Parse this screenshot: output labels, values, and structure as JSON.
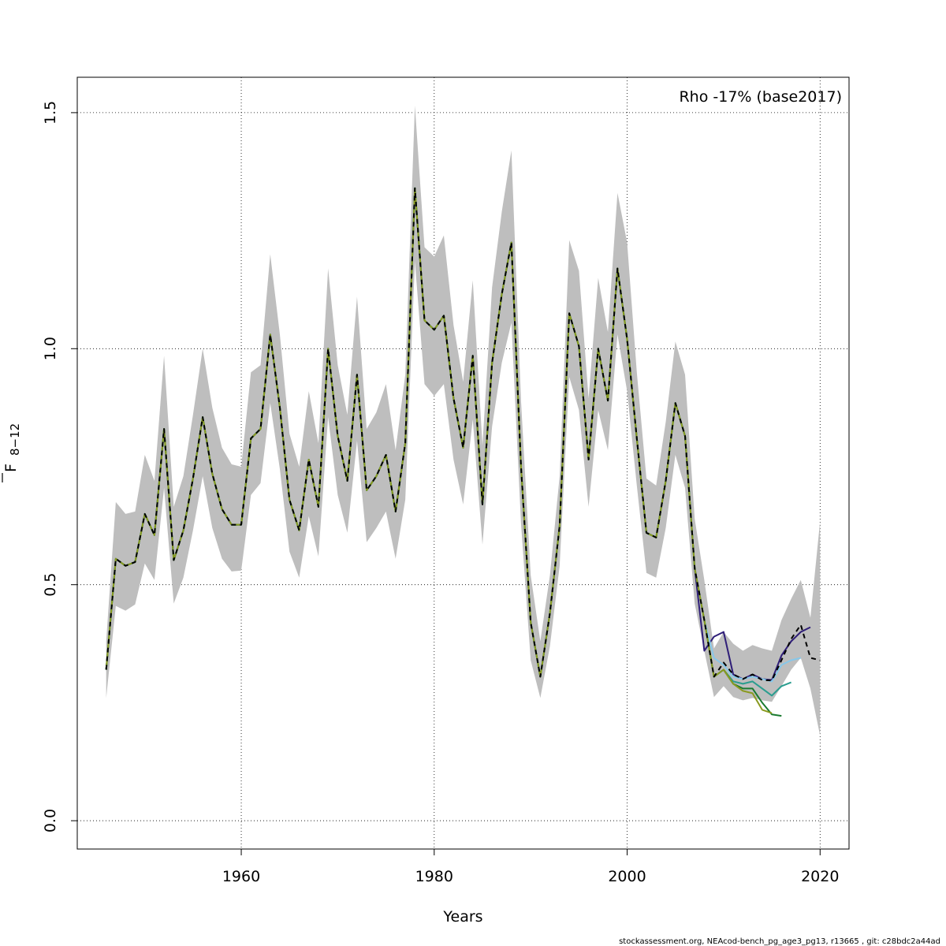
{
  "chart_data": {
    "type": "line",
    "annotation": "Rho -17% (base2017)",
    "xlabel": "Years",
    "ylabel_main": "F",
    "ylabel_sub": "8−12",
    "footer": "stockassessment.org, NEAcod-bench_pg_age3_pg13, r13665 , git: c28bdc2a44ad",
    "xlim": [
      1943,
      2023
    ],
    "ylim": [
      -0.06,
      1.575
    ],
    "x_ticks": [
      1960,
      1980,
      2000,
      2020
    ],
    "x_tick_labels": [
      "1960",
      "1980",
      "2000",
      "2020"
    ],
    "y_ticks": [
      0.0,
      0.5,
      1.0,
      1.5
    ],
    "y_tick_labels": [
      "0.0",
      "0.5",
      "1.0",
      "1.5"
    ],
    "grid": true,
    "colors": {
      "band": "#bebebe",
      "base": "#000000",
      "grid": "#000000"
    },
    "x": [
      1946,
      1947,
      1948,
      1949,
      1950,
      1951,
      1952,
      1953,
      1954,
      1955,
      1956,
      1957,
      1958,
      1959,
      1960,
      1961,
      1962,
      1963,
      1964,
      1965,
      1966,
      1967,
      1968,
      1969,
      1970,
      1971,
      1972,
      1973,
      1974,
      1975,
      1976,
      1977,
      1978,
      1979,
      1980,
      1981,
      1982,
      1983,
      1984,
      1985,
      1986,
      1987,
      1988,
      1989,
      1990,
      1991,
      1992,
      1993,
      1994,
      1995,
      1996,
      1997,
      1998,
      1999,
      2000,
      2001,
      2002,
      2003,
      2004,
      2005,
      2006,
      2007,
      2008,
      2009,
      2010,
      2011,
      2012,
      2013,
      2014,
      2015,
      2016,
      2017,
      2018,
      2019,
      2020
    ],
    "base": [
      0.32,
      0.555,
      0.54,
      0.548,
      0.65,
      0.605,
      0.83,
      0.552,
      0.615,
      0.725,
      0.855,
      0.735,
      0.66,
      0.627,
      0.627,
      0.81,
      0.83,
      1.03,
      0.875,
      0.68,
      0.615,
      0.765,
      0.665,
      1.0,
      0.815,
      0.72,
      0.945,
      0.7,
      0.73,
      0.775,
      0.655,
      0.8,
      1.34,
      1.06,
      1.04,
      1.07,
      0.895,
      0.79,
      0.985,
      0.67,
      0.97,
      1.115,
      1.225,
      0.75,
      0.42,
      0.305,
      0.44,
      0.625,
      1.075,
      1.005,
      0.765,
      1.0,
      0.89,
      1.17,
      1.02,
      0.81,
      0.61,
      0.6,
      0.72,
      0.885,
      0.815,
      0.535,
      0.425,
      0.305,
      0.335,
      0.31,
      0.3,
      0.31,
      0.298,
      0.297,
      0.34,
      0.385,
      0.415,
      0.345,
      0.34
    ],
    "upper": [
      0.38,
      0.675,
      0.65,
      0.655,
      0.775,
      0.72,
      0.985,
      0.665,
      0.73,
      0.86,
      1.0,
      0.875,
      0.79,
      0.755,
      0.75,
      0.95,
      0.965,
      1.2,
      1.03,
      0.82,
      0.75,
      0.91,
      0.8,
      1.17,
      0.965,
      0.86,
      1.11,
      0.83,
      0.865,
      0.925,
      0.785,
      0.945,
      1.515,
      1.215,
      1.195,
      1.24,
      1.05,
      0.93,
      1.145,
      0.795,
      1.13,
      1.29,
      1.42,
      0.89,
      0.52,
      0.38,
      0.52,
      0.73,
      1.23,
      1.165,
      0.895,
      1.15,
      1.035,
      1.33,
      1.225,
      0.95,
      0.725,
      0.71,
      0.845,
      1.015,
      0.945,
      0.64,
      0.51,
      0.365,
      0.4,
      0.375,
      0.36,
      0.372,
      0.365,
      0.36,
      0.425,
      0.47,
      0.51,
      0.43,
      0.635
    ],
    "lower": [
      0.26,
      0.455,
      0.445,
      0.458,
      0.545,
      0.51,
      0.705,
      0.46,
      0.515,
      0.615,
      0.73,
      0.62,
      0.555,
      0.528,
      0.53,
      0.69,
      0.715,
      0.885,
      0.745,
      0.57,
      0.515,
      0.645,
      0.56,
      0.855,
      0.69,
      0.61,
      0.805,
      0.59,
      0.62,
      0.655,
      0.555,
      0.68,
      1.185,
      0.925,
      0.9,
      0.925,
      0.765,
      0.67,
      0.85,
      0.585,
      0.835,
      0.97,
      1.055,
      0.63,
      0.34,
      0.26,
      0.37,
      0.54,
      0.94,
      0.87,
      0.665,
      0.87,
      0.785,
      1.03,
      0.91,
      0.71,
      0.525,
      0.515,
      0.62,
      0.775,
      0.705,
      0.46,
      0.36,
      0.262,
      0.285,
      0.262,
      0.255,
      0.26,
      0.255,
      0.252,
      0.285,
      0.32,
      0.345,
      0.28,
      0.18
    ],
    "peels": [
      {
        "color": "#2f1e78",
        "x_start": 1946,
        "x_end": 2019,
        "tail": [
          0.36,
          0.39,
          0.4,
          0.31,
          0.3,
          0.31,
          0.3,
          0.298,
          0.35,
          0.38,
          0.4,
          0.41
        ]
      },
      {
        "color": "#87c8ea",
        "x_start": 1946,
        "x_end": 2018,
        "tail": [
          0.345,
          0.33,
          0.305,
          0.3,
          0.305,
          0.3,
          0.295,
          0.33,
          0.34,
          0.345
        ]
      },
      {
        "color": "#2a9d8f",
        "x_start": 1946,
        "x_end": 2017,
        "tail": [
          0.32,
          0.295,
          0.29,
          0.295,
          0.28,
          0.265,
          0.285,
          0.293
        ]
      },
      {
        "color": "#1a7a30",
        "x_start": 1946,
        "x_end": 2016,
        "tail": [
          0.32,
          0.29,
          0.28,
          0.28,
          0.25,
          0.225,
          0.222
        ]
      },
      {
        "color": "#8a9a20",
        "x_start": 1946,
        "x_end": 2015,
        "tail": [
          0.32,
          0.29,
          0.275,
          0.27,
          0.235,
          0.228
        ]
      }
    ]
  }
}
